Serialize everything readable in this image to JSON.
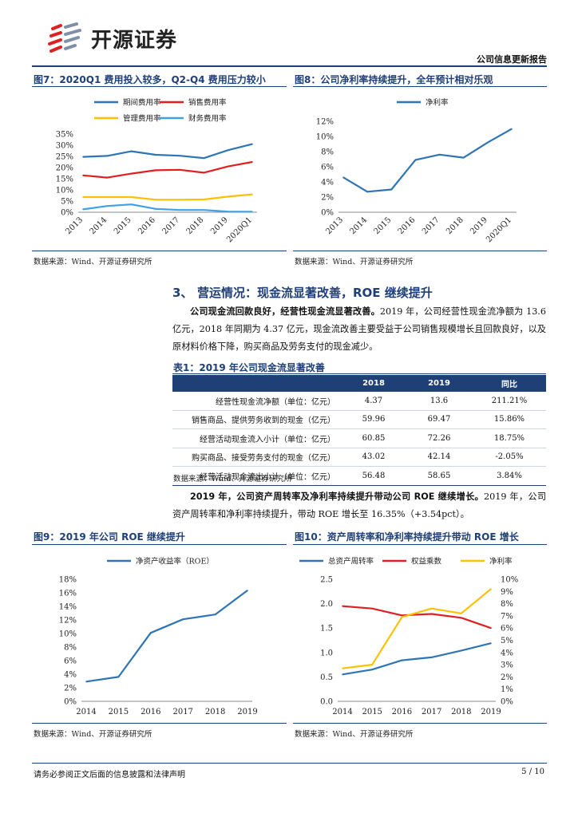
{
  "header": {
    "logo_text": "开源证券",
    "report_type": "公司信息更新报告"
  },
  "fig7": {
    "title": "图7：2020Q1 费用投入较多，Q2-Q4 费用压力较小",
    "source": "数据来源：Wind、开源证券研究所"
  },
  "fig8": {
    "title": "图8：公司净利率持续提升，全年预计相对乐观",
    "source": "数据来源：Wind、开源证券研究所"
  },
  "section": {
    "number": "3、",
    "title": "营运情况：现金流显著改善，ROE 继续提升"
  },
  "para1": {
    "bold": "公司现金流回款良好，经营性现金流显著改善。",
    "text": "2019 年，公司经营性现金流净额为 13.6 亿元，2018 年同期为 4.37 亿元，现金流改善主要受益于公司销售规模增长且回款良好，以及原材料价格下降，购买商品及劳务支付的现金减少。"
  },
  "table1": {
    "title": "表1：2019 年公司现金流显著改善",
    "headers": [
      "",
      "2018",
      "2019",
      "同比"
    ],
    "rows": [
      [
        "经营性现金流净额（单位：亿元）",
        "4.37",
        "13.6",
        "211.21%"
      ],
      [
        "销售商品、提供劳务收到的现金（亿元）",
        "59.96",
        "69.47",
        "15.86%"
      ],
      [
        "经营活动现金流入小计（单位：亿元）",
        "60.85",
        "72.26",
        "18.75%"
      ],
      [
        "购买商品、接受劳务支付的现金（亿元）",
        "43.02",
        "42.14",
        "-2.05%"
      ],
      [
        "经营活动现金流出小计（单位：亿元）",
        "56.48",
        "58.65",
        "3.84%"
      ]
    ],
    "source": "数据来源：Wind、开源证券研究所"
  },
  "para2": {
    "bold": "2019 年，公司资产周转率及净利率持续提升带动公司 ROE 继续增长。",
    "text": "2019 年，公司资产周转率和净利率持续提升，带动 ROE 增长至 16.35%（+3.54pct）。"
  },
  "fig9": {
    "title": "图9：2019 年公司 ROE 继续提升",
    "source": "数据来源：Wind、开源证券研究所"
  },
  "fig10": {
    "title": "图10：资产周转率和净利率持续提升带动 ROE 增长",
    "source": "数据来源：Wind、开源证券研究所"
  },
  "footer": {
    "disclaimer": "请务必参阅正文后面的信息披露和法律声明",
    "page": "5 / 10"
  },
  "chart_data": [
    {
      "id": "fig7",
      "type": "line",
      "categories": [
        "2013",
        "2014",
        "2015",
        "2016",
        "2017",
        "2018",
        "2019",
        "2020Q1"
      ],
      "series": [
        {
          "name": "期间费用率",
          "color": "#2e75b6",
          "values": [
            24.8,
            25.2,
            27.3,
            25.7,
            25.3,
            24.2,
            27.8,
            30.5
          ]
        },
        {
          "name": "销售费用率",
          "color": "#e02020",
          "values": [
            16.5,
            15.5,
            17.3,
            18.8,
            19.0,
            17.7,
            20.5,
            22.5
          ]
        },
        {
          "name": "管理费用率",
          "color": "#ffc000",
          "values": [
            6.8,
            6.8,
            6.8,
            5.6,
            5.6,
            5.7,
            7.0,
            8.0
          ]
        },
        {
          "name": "财务费用率",
          "color": "#3fa0e8",
          "values": [
            1.3,
            2.8,
            3.5,
            1.5,
            1.0,
            1.0,
            0.3,
            0.2
          ]
        }
      ],
      "ylim": [
        0,
        35
      ],
      "yticks": [
        "0%",
        "5%",
        "10%",
        "15%",
        "20%",
        "25%",
        "30%",
        "35%"
      ]
    },
    {
      "id": "fig8",
      "type": "line",
      "categories": [
        "2013",
        "2014",
        "2015",
        "2016",
        "2017",
        "2018",
        "2019",
        "2020Q1"
      ],
      "series": [
        {
          "name": "净利率",
          "color": "#2e75b6",
          "values": [
            4.6,
            2.7,
            3.0,
            6.9,
            7.6,
            7.2,
            9.2,
            11.0
          ]
        }
      ],
      "ylim": [
        0,
        12
      ],
      "yticks": [
        "0%",
        "2%",
        "4%",
        "6%",
        "8%",
        "10%",
        "12%"
      ]
    },
    {
      "id": "fig9",
      "type": "line",
      "categories": [
        "2014",
        "2015",
        "2016",
        "2017",
        "2018",
        "2019"
      ],
      "series": [
        {
          "name": "净资产收益率（ROE）",
          "color": "#2e75b6",
          "values": [
            2.9,
            3.6,
            10.1,
            12.1,
            12.8,
            16.35
          ]
        }
      ],
      "ylim": [
        0,
        18
      ],
      "yticks": [
        "0%",
        "2%",
        "4%",
        "6%",
        "8%",
        "10%",
        "12%",
        "14%",
        "16%",
        "18%"
      ]
    },
    {
      "id": "fig10",
      "type": "line",
      "categories": [
        "2014",
        "2015",
        "2016",
        "2017",
        "2018",
        "2019"
      ],
      "series": [
        {
          "name": "总资产周转率",
          "color": "#2e75b6",
          "axis": "left",
          "values": [
            0.55,
            0.65,
            0.84,
            0.9,
            1.04,
            1.19
          ]
        },
        {
          "name": "权益乘数",
          "color": "#e02020",
          "axis": "left",
          "values": [
            1.95,
            1.9,
            1.76,
            1.79,
            1.71,
            1.5
          ]
        },
        {
          "name": "净利率",
          "color": "#ffc000",
          "axis": "right",
          "values": [
            2.7,
            3.0,
            6.9,
            7.6,
            7.2,
            9.2
          ]
        }
      ],
      "ylim_left": [
        0,
        2.5
      ],
      "yticks_left": [
        "0.0",
        "0.5",
        "1.0",
        "1.5",
        "2.0",
        "2.5"
      ],
      "ylim_right": [
        0,
        10
      ],
      "yticks_right": [
        "0%",
        "1%",
        "2%",
        "3%",
        "4%",
        "5%",
        "6%",
        "7%",
        "8%",
        "9%",
        "10%"
      ]
    }
  ]
}
